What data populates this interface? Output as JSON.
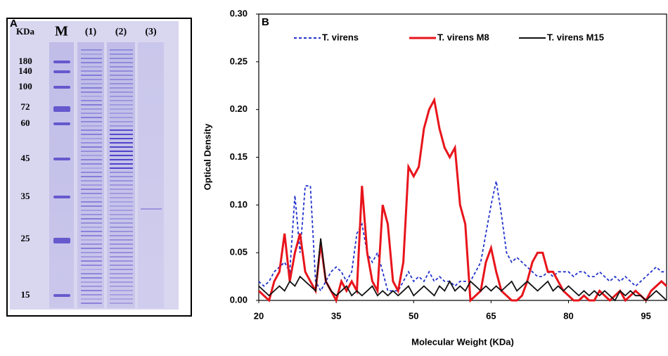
{
  "panel_a": {
    "label": "A",
    "unit": "KDa",
    "lanes": [
      "M",
      "(1)",
      "(2)",
      "(3)"
    ],
    "markers": [
      "180",
      "140",
      "100",
      "72",
      "60",
      "45",
      "35",
      "25",
      "15"
    ]
  },
  "chart_data": {
    "type": "line",
    "panel_label": "B",
    "x_label": "Molecular Weight (KDa)",
    "y_label": "Optical Density",
    "xlim": [
      20,
      99
    ],
    "xticks": [
      20,
      35,
      50,
      65,
      80,
      95
    ],
    "ylim": [
      0,
      0.3
    ],
    "yticks": [
      {
        "value": 0,
        "label": "0.00"
      },
      {
        "value": 0.05,
        "label": "0.05"
      },
      {
        "value": 0.1,
        "label": "0.10"
      },
      {
        "value": 0.15,
        "label": "0.15"
      },
      {
        "value": 0.2,
        "label": "0.20"
      },
      {
        "value": 0.25,
        "label": "0.25"
      },
      {
        "value": 0.3,
        "label": "0.30"
      }
    ],
    "x": [
      20,
      21,
      22,
      23,
      24,
      25,
      26,
      27,
      28,
      29,
      30,
      31,
      32,
      33,
      34,
      35,
      36,
      37,
      38,
      39,
      40,
      41,
      42,
      43,
      44,
      45,
      46,
      47,
      48,
      49,
      50,
      51,
      52,
      53,
      54,
      55,
      56,
      57,
      58,
      59,
      60,
      61,
      62,
      63,
      64,
      65,
      66,
      67,
      68,
      69,
      70,
      71,
      72,
      73,
      74,
      75,
      76,
      77,
      78,
      79,
      80,
      81,
      82,
      83,
      84,
      85,
      86,
      87,
      88,
      89,
      90,
      91,
      92,
      93,
      94,
      95,
      96,
      97,
      98,
      99
    ],
    "series": [
      {
        "name": "T. virens",
        "color": "#2233cc",
        "dashed": true,
        "values": [
          0.02,
          0.015,
          0.02,
          0.03,
          0.035,
          0.04,
          0.03,
          0.11,
          0.05,
          0.12,
          0.12,
          0.02,
          0.01,
          0.02,
          0.03,
          0.035,
          0.03,
          0.02,
          0.03,
          0.07,
          0.08,
          0.05,
          0.04,
          0.05,
          0.03,
          0.01,
          0.01,
          0.01,
          0.02,
          0.03,
          0.02,
          0.025,
          0.02,
          0.03,
          0.02,
          0.025,
          0.02,
          0.02,
          0.015,
          0.02,
          0.02,
          0.02,
          0.03,
          0.04,
          0.07,
          0.1,
          0.125,
          0.09,
          0.05,
          0.04,
          0.045,
          0.04,
          0.035,
          0.03,
          0.025,
          0.025,
          0.03,
          0.025,
          0.03,
          0.03,
          0.03,
          0.025,
          0.03,
          0.03,
          0.025,
          0.025,
          0.03,
          0.025,
          0.02,
          0.025,
          0.02,
          0.025,
          0.02,
          0.015,
          0.02,
          0.025,
          0.03,
          0.035,
          0.03,
          0.03
        ]
      },
      {
        "name": "T. virens M8",
        "color": "#e8141b",
        "dashed": false,
        "values": [
          0.01,
          0.005,
          0.0,
          0.02,
          0.03,
          0.07,
          0.02,
          0.05,
          0.07,
          0.03,
          0.02,
          0.01,
          0.06,
          0.02,
          0.01,
          0.0,
          0.02,
          0.01,
          0.02,
          0.01,
          0.12,
          0.05,
          0.02,
          0.01,
          0.1,
          0.08,
          0.02,
          0.01,
          0.04,
          0.14,
          0.13,
          0.14,
          0.18,
          0.2,
          0.21,
          0.18,
          0.16,
          0.15,
          0.16,
          0.1,
          0.08,
          0.0,
          0.005,
          0.01,
          0.04,
          0.055,
          0.03,
          0.01,
          0.005,
          0.0,
          0.0,
          0.005,
          0.02,
          0.04,
          0.05,
          0.05,
          0.03,
          0.03,
          0.02,
          0.01,
          0.005,
          0.0,
          0.0,
          0.005,
          0.0,
          0.0,
          0.01,
          0.005,
          0.0,
          0.005,
          0.01,
          0.0,
          0.005,
          0.01,
          0.005,
          0.0,
          0.01,
          0.015,
          0.02,
          0.015
        ]
      },
      {
        "name": "T. virens M15",
        "color": "#111111",
        "dashed": false,
        "values": [
          0.015,
          0.01,
          0.005,
          0.01,
          0.015,
          0.01,
          0.02,
          0.015,
          0.025,
          0.02,
          0.015,
          0.01,
          0.065,
          0.02,
          0.01,
          0.005,
          0.01,
          0.015,
          0.005,
          0.01,
          0.005,
          0.01,
          0.015,
          0.005,
          0.01,
          0.005,
          0.01,
          0.005,
          0.01,
          0.015,
          0.005,
          0.01,
          0.015,
          0.01,
          0.005,
          0.015,
          0.01,
          0.02,
          0.01,
          0.015,
          0.01,
          0.02,
          0.015,
          0.01,
          0.015,
          0.01,
          0.015,
          0.01,
          0.015,
          0.02,
          0.01,
          0.015,
          0.02,
          0.015,
          0.01,
          0.015,
          0.02,
          0.01,
          0.015,
          0.01,
          0.015,
          0.01,
          0.005,
          0.01,
          0.005,
          0.01,
          0.005,
          0.01,
          0.005,
          0.0,
          0.01,
          0.005,
          0.01,
          0.005,
          0.005,
          0.0,
          0.005,
          0.01,
          0.005,
          0.0
        ]
      }
    ]
  }
}
